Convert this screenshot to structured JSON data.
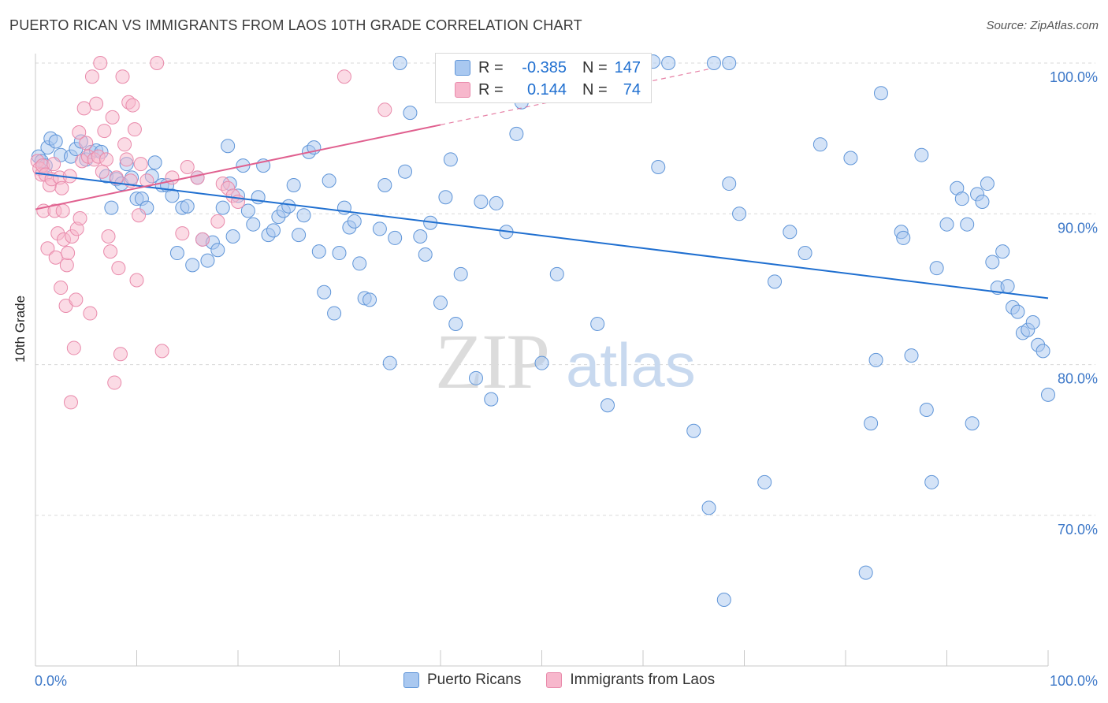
{
  "header": {
    "title": "PUERTO RICAN VS IMMIGRANTS FROM LAOS 10TH GRADE CORRELATION CHART",
    "source": "Source: ZipAtlas.com"
  },
  "watermark": {
    "zip": "ZIP",
    "atlas": "atlas"
  },
  "legend": {
    "rows": [
      {
        "r_label": "R =",
        "r_value": "-0.385",
        "n_label": "N =",
        "n_value": "147"
      },
      {
        "r_label": "R =",
        "r_value": "0.144",
        "n_label": "N =",
        "n_value": "74"
      }
    ]
  },
  "bottom_legend": {
    "series1": "Puerto Ricans",
    "series2": "Immigrants from Laos"
  },
  "colors": {
    "blue_fill": "#a9c8f0",
    "blue_stroke": "#5f95d8",
    "blue_line": "#1f6fd0",
    "pink_fill": "#f7b7cc",
    "pink_stroke": "#e98aab",
    "pink_line": "#e0608f",
    "tick_text": "#3d78c8",
    "grid": "#d9d9d9"
  },
  "chart_data": {
    "type": "scatter",
    "title": "PUERTO RICAN VS IMMIGRANTS FROM LAOS 10TH GRADE CORRELATION CHART",
    "xlabel": "",
    "ylabel": "10th Grade",
    "xlim": [
      0,
      100
    ],
    "ylim": [
      60.5,
      102.5
    ],
    "x_tick_labels": [
      "0.0%",
      "100.0%"
    ],
    "y_ticks": [
      70,
      80,
      90,
      100
    ],
    "y_tick_labels": [
      "70.0%",
      "80.0%",
      "90.0%",
      "100.0%"
    ],
    "grid": true,
    "legend_position": "top-center",
    "series": [
      {
        "name": "Puerto Ricans",
        "r": -0.385,
        "n": 147,
        "trend": {
          "x0": 0,
          "y0": 92.7,
          "x1": 100,
          "y1": 84.4
        },
        "points": [
          [
            0.3,
            93.8
          ],
          [
            0.6,
            93.5
          ],
          [
            1.0,
            93.2
          ],
          [
            1.2,
            94.4
          ],
          [
            1.5,
            95.0
          ],
          [
            2.0,
            94.8
          ],
          [
            2.5,
            93.9
          ],
          [
            3.5,
            93.8
          ],
          [
            4.0,
            94.3
          ],
          [
            4.5,
            94.8
          ],
          [
            5.0,
            93.6
          ],
          [
            5.5,
            94.1
          ],
          [
            6.0,
            94.2
          ],
          [
            6.5,
            94.1
          ],
          [
            7.0,
            92.5
          ],
          [
            7.5,
            90.4
          ],
          [
            8.0,
            92.3
          ],
          [
            8.5,
            92.0
          ],
          [
            9.0,
            93.3
          ],
          [
            9.5,
            92.4
          ],
          [
            10.0,
            91.0
          ],
          [
            10.5,
            91.0
          ],
          [
            11.0,
            90.4
          ],
          [
            11.5,
            92.5
          ],
          [
            11.8,
            93.4
          ],
          [
            12.5,
            91.9
          ],
          [
            13.0,
            91.9
          ],
          [
            13.5,
            91.2
          ],
          [
            14.0,
            87.4
          ],
          [
            14.5,
            90.4
          ],
          [
            15.0,
            90.5
          ],
          [
            15.5,
            86.6
          ],
          [
            16.0,
            92.4
          ],
          [
            16.5,
            88.3
          ],
          [
            17.0,
            86.9
          ],
          [
            17.5,
            88.1
          ],
          [
            18.0,
            87.6
          ],
          [
            18.5,
            90.4
          ],
          [
            19.0,
            94.5
          ],
          [
            19.2,
            92.0
          ],
          [
            19.5,
            88.5
          ],
          [
            20.0,
            91.2
          ],
          [
            20.5,
            93.2
          ],
          [
            21.0,
            90.2
          ],
          [
            21.5,
            89.3
          ],
          [
            22.0,
            91.1
          ],
          [
            22.5,
            93.2
          ],
          [
            23.0,
            88.6
          ],
          [
            23.5,
            88.9
          ],
          [
            24.0,
            89.8
          ],
          [
            24.5,
            90.2
          ],
          [
            25.0,
            90.5
          ],
          [
            25.5,
            91.9
          ],
          [
            26.0,
            88.6
          ],
          [
            26.5,
            89.9
          ],
          [
            27.0,
            94.1
          ],
          [
            27.5,
            94.4
          ],
          [
            28.0,
            87.5
          ],
          [
            28.5,
            84.8
          ],
          [
            29.0,
            92.2
          ],
          [
            29.5,
            83.4
          ],
          [
            30.0,
            87.4
          ],
          [
            30.5,
            90.4
          ],
          [
            31.0,
            89.1
          ],
          [
            31.5,
            89.5
          ],
          [
            32.0,
            86.7
          ],
          [
            32.5,
            84.4
          ],
          [
            33.0,
            84.3
          ],
          [
            34.0,
            89.0
          ],
          [
            34.5,
            91.9
          ],
          [
            35.0,
            80.1
          ],
          [
            35.5,
            88.4
          ],
          [
            36.0,
            100.0
          ],
          [
            36.5,
            92.8
          ],
          [
            37.0,
            96.7
          ],
          [
            38.0,
            88.5
          ],
          [
            38.5,
            87.3
          ],
          [
            39.0,
            89.4
          ],
          [
            40.0,
            84.1
          ],
          [
            40.5,
            91.1
          ],
          [
            41.0,
            93.6
          ],
          [
            41.5,
            82.7
          ],
          [
            42.0,
            86.0
          ],
          [
            43.5,
            79.1
          ],
          [
            44.0,
            90.8
          ],
          [
            45.0,
            77.7
          ],
          [
            45.5,
            90.7
          ],
          [
            46.5,
            88.8
          ],
          [
            47.5,
            95.3
          ],
          [
            48.0,
            97.4
          ],
          [
            50.0,
            80.1
          ],
          [
            51.5,
            86.0
          ],
          [
            52.0,
            100.2
          ],
          [
            54.0,
            99.8
          ],
          [
            55.5,
            82.7
          ],
          [
            56.5,
            77.3
          ],
          [
            58.0,
            100.0
          ],
          [
            61.0,
            100.1
          ],
          [
            61.5,
            93.1
          ],
          [
            62.5,
            100.0
          ],
          [
            65.0,
            75.6
          ],
          [
            66.5,
            70.5
          ],
          [
            67.0,
            100.0
          ],
          [
            68.5,
            100.0
          ],
          [
            68.0,
            64.4
          ],
          [
            68.5,
            92.0
          ],
          [
            69.5,
            90.0
          ],
          [
            72.0,
            72.2
          ],
          [
            73.0,
            85.5
          ],
          [
            74.5,
            88.8
          ],
          [
            76.0,
            87.4
          ],
          [
            77.5,
            94.6
          ],
          [
            80.5,
            93.7
          ],
          [
            82.0,
            66.2
          ],
          [
            82.5,
            76.1
          ],
          [
            83.0,
            80.3
          ],
          [
            83.5,
            98.0
          ],
          [
            85.5,
            88.8
          ],
          [
            85.7,
            88.4
          ],
          [
            86.5,
            80.6
          ],
          [
            87.5,
            93.9
          ],
          [
            88.0,
            77.0
          ],
          [
            88.5,
            72.2
          ],
          [
            89.0,
            86.4
          ],
          [
            90.0,
            89.3
          ],
          [
            91.0,
            91.7
          ],
          [
            91.5,
            91.0
          ],
          [
            92.0,
            89.3
          ],
          [
            92.5,
            76.1
          ],
          [
            93.0,
            91.3
          ],
          [
            93.5,
            90.8
          ],
          [
            94.0,
            92.0
          ],
          [
            94.5,
            86.8
          ],
          [
            95.0,
            85.1
          ],
          [
            95.5,
            87.5
          ],
          [
            96.0,
            85.2
          ],
          [
            96.5,
            83.8
          ],
          [
            97.0,
            83.5
          ],
          [
            97.5,
            82.1
          ],
          [
            98.0,
            82.3
          ],
          [
            98.5,
            82.8
          ],
          [
            99.0,
            81.3
          ],
          [
            99.5,
            80.9
          ],
          [
            100.0,
            78.0
          ]
        ]
      },
      {
        "name": "Immigrants from Laos",
        "r": 0.144,
        "n": 74,
        "trend": {
          "x0": 0,
          "y0": 90.3,
          "x1": 40,
          "y1": 95.9,
          "dash_to_x": 66.5,
          "dash_to_y": 99.6
        },
        "points": [
          [
            0.2,
            93.5
          ],
          [
            0.4,
            93.0
          ],
          [
            0.6,
            92.6
          ],
          [
            0.7,
            93.2
          ],
          [
            0.8,
            90.2
          ],
          [
            1.0,
            92.6
          ],
          [
            1.2,
            87.7
          ],
          [
            1.4,
            91.9
          ],
          [
            1.6,
            92.3
          ],
          [
            1.8,
            93.3
          ],
          [
            1.9,
            90.2
          ],
          [
            2.0,
            87.1
          ],
          [
            2.2,
            88.7
          ],
          [
            2.4,
            92.4
          ],
          [
            2.5,
            85.1
          ],
          [
            2.6,
            91.7
          ],
          [
            2.7,
            90.2
          ],
          [
            2.8,
            88.3
          ],
          [
            3.0,
            83.9
          ],
          [
            3.1,
            86.6
          ],
          [
            3.2,
            87.4
          ],
          [
            3.4,
            92.5
          ],
          [
            3.5,
            77.5
          ],
          [
            3.6,
            88.5
          ],
          [
            3.8,
            81.1
          ],
          [
            4.0,
            84.3
          ],
          [
            4.1,
            89.0
          ],
          [
            4.3,
            95.4
          ],
          [
            4.4,
            89.7
          ],
          [
            4.6,
            93.5
          ],
          [
            4.8,
            97.0
          ],
          [
            5.0,
            94.7
          ],
          [
            5.2,
            93.8
          ],
          [
            5.4,
            83.4
          ],
          [
            5.6,
            99.1
          ],
          [
            5.8,
            93.6
          ],
          [
            6.0,
            97.3
          ],
          [
            6.2,
            93.8
          ],
          [
            6.4,
            100.0
          ],
          [
            6.6,
            92.8
          ],
          [
            6.8,
            95.5
          ],
          [
            7.0,
            93.6
          ],
          [
            7.2,
            88.5
          ],
          [
            7.4,
            87.5
          ],
          [
            7.6,
            96.4
          ],
          [
            7.8,
            78.8
          ],
          [
            8.0,
            92.4
          ],
          [
            8.2,
            86.4
          ],
          [
            8.4,
            80.7
          ],
          [
            8.6,
            99.1
          ],
          [
            8.8,
            94.6
          ],
          [
            9.0,
            93.6
          ],
          [
            9.2,
            97.4
          ],
          [
            9.4,
            92.2
          ],
          [
            9.6,
            97.2
          ],
          [
            9.8,
            95.6
          ],
          [
            10.0,
            85.6
          ],
          [
            10.2,
            89.9
          ],
          [
            10.4,
            93.3
          ],
          [
            11.0,
            92.2
          ],
          [
            12.0,
            100.0
          ],
          [
            12.5,
            80.9
          ],
          [
            13.5,
            92.4
          ],
          [
            14.5,
            88.7
          ],
          [
            15.0,
            93.1
          ],
          [
            16.0,
            92.4
          ],
          [
            16.5,
            88.3
          ],
          [
            18.0,
            89.5
          ],
          [
            18.5,
            92.0
          ],
          [
            19.0,
            91.7
          ],
          [
            19.5,
            91.2
          ],
          [
            20.0,
            90.8
          ],
          [
            30.5,
            99.1
          ],
          [
            34.5,
            96.9
          ]
        ]
      }
    ]
  }
}
